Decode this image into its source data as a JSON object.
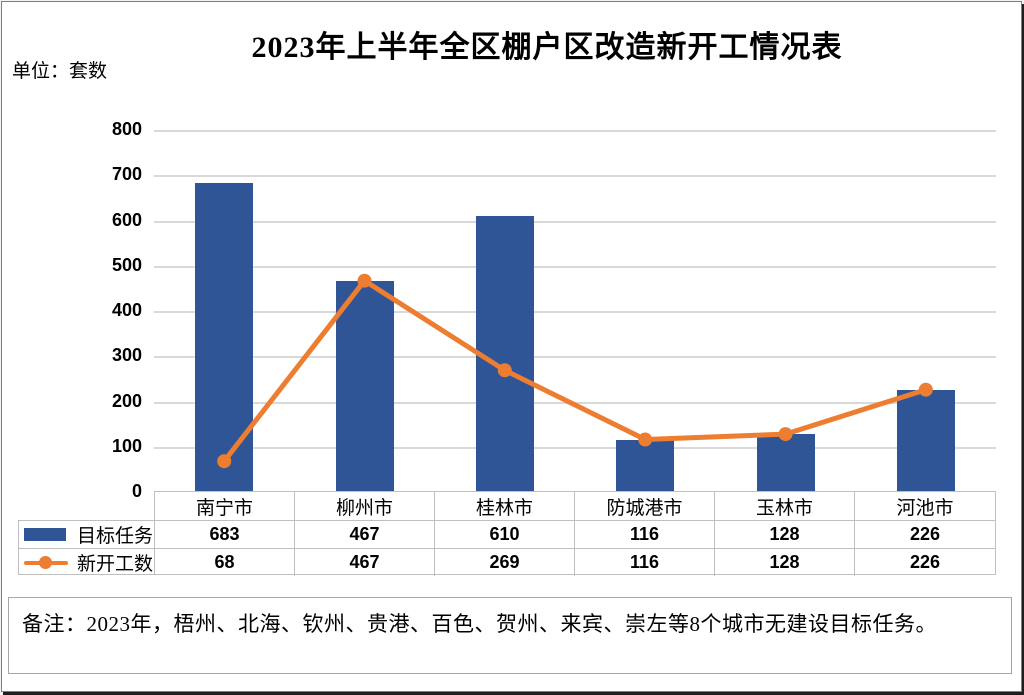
{
  "title": "2023年上半年全区棚户区改造新开工情况表",
  "unit_label": "单位：套数",
  "note": "备注：2023年，梧州、北海、钦州、贵港、百色、贺州、来宾、崇左等8个城市无建设目标任务。",
  "colors": {
    "bar": "#2F5597",
    "line": "#ED7D31",
    "gridline": "#D9D9D9",
    "table_border": "#BFBFBF",
    "text": "#000000"
  },
  "chart_data": {
    "type": "bar",
    "subtype": "combo-bar-line-with-data-table",
    "categories": [
      "南宁市",
      "柳州市",
      "桂林市",
      "防城港市",
      "玉林市",
      "河池市"
    ],
    "series": [
      {
        "name": "目标任务",
        "type": "bar",
        "color": "#2F5597",
        "values": [
          683,
          467,
          610,
          116,
          128,
          226
        ]
      },
      {
        "name": "新开工数",
        "type": "line",
        "color": "#ED7D31",
        "values": [
          68,
          467,
          269,
          116,
          128,
          226
        ]
      }
    ],
    "title": "2023年上半年全区棚户区改造新开工情况表",
    "xlabel": "",
    "ylabel": "",
    "ylim": [
      0,
      800
    ],
    "ytick_interval": 100,
    "yticks": [
      800,
      700,
      600,
      500,
      400,
      300,
      200,
      100,
      0
    ],
    "grid": "horizontal",
    "legend_position": "left-of-data-table"
  }
}
